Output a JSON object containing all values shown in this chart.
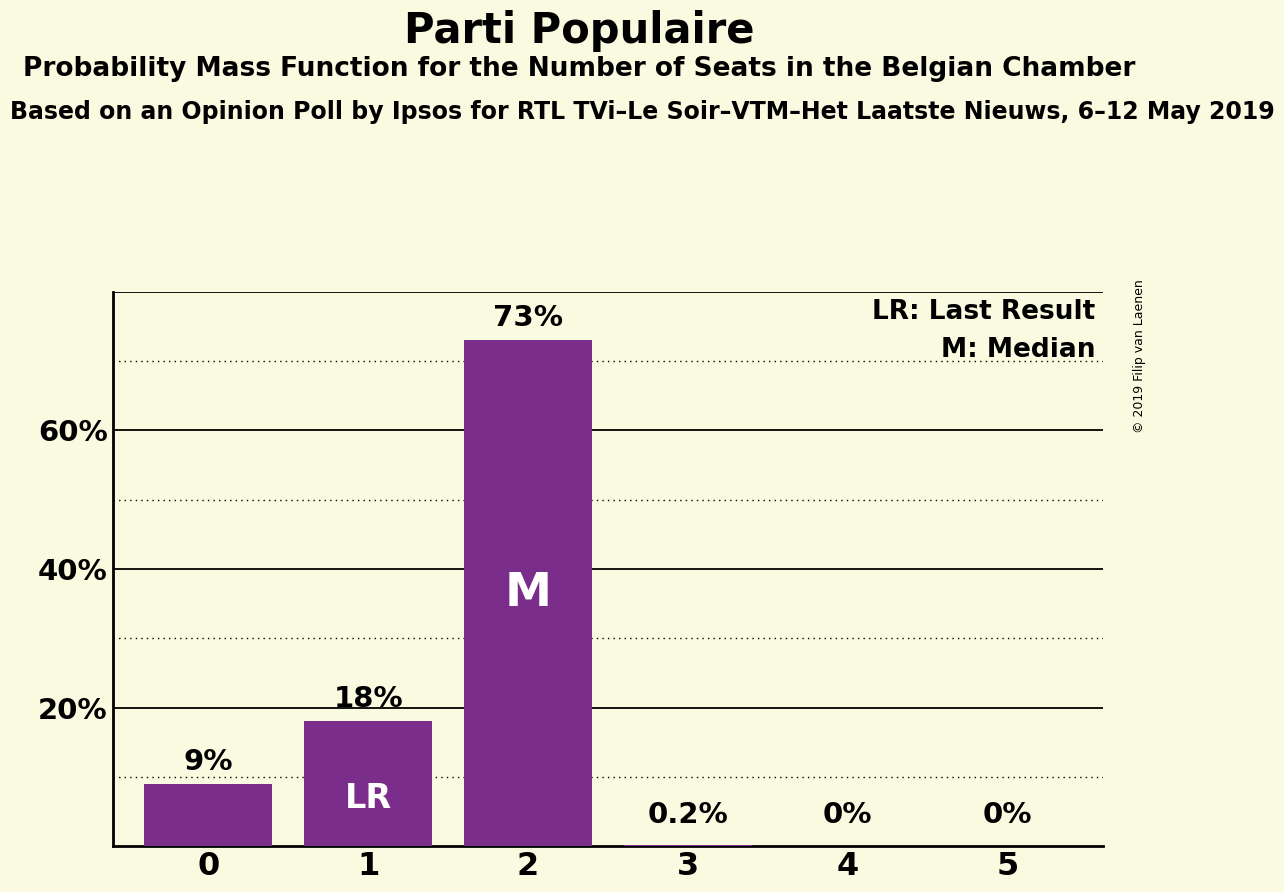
{
  "title": "Parti Populaire",
  "subtitle": "Probability Mass Function for the Number of Seats in the Belgian Chamber",
  "source_line": "Based on an Opinion Poll by Ipsos for RTL TVi–Le Soir–VTM–Het Laatste Nieuws, 6–12 May 2019",
  "copyright": "© 2019 Filip van Laenen",
  "categories": [
    0,
    1,
    2,
    3,
    4,
    5
  ],
  "values": [
    9,
    18,
    73,
    0.2,
    0,
    0
  ],
  "bar_color": "#7B2D8B",
  "background_color": "#FAFAE0",
  "value_labels": [
    "9%",
    "18%",
    "73%",
    "0.2%",
    "0%",
    "0%"
  ],
  "lr_bar": 1,
  "median_bar": 2,
  "legend_lr": "LR: Last Result",
  "legend_m": "M: Median",
  "title_fontsize": 30,
  "subtitle_fontsize": 19,
  "source_fontsize": 17,
  "bar_label_inside_color": "#FFFFFF",
  "bar_label_outside_color": "#000000",
  "solid_lines": [
    20,
    40,
    60,
    80
  ],
  "dotted_lines": [
    10,
    30,
    50,
    70
  ]
}
